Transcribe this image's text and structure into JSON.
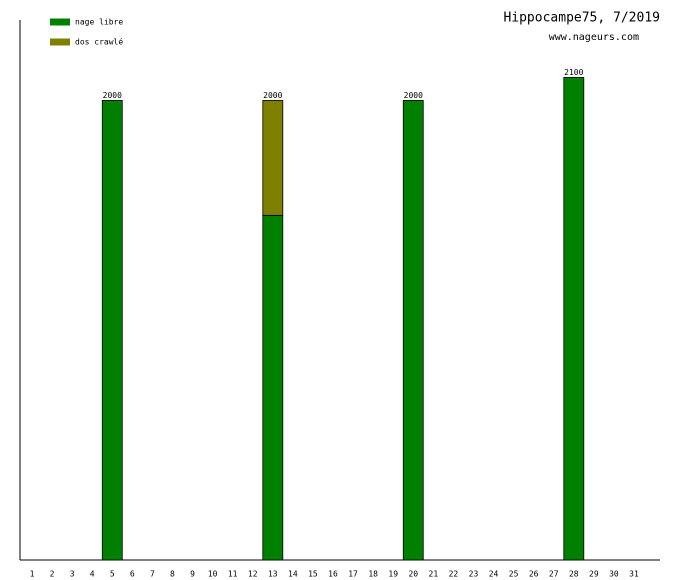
{
  "chart_data": {
    "type": "stacked_bar",
    "title": "Hippocampe75, 7/2019",
    "subtitle": "www.nageurs.com",
    "categories": [
      "1",
      "2",
      "3",
      "4",
      "5",
      "6",
      "7",
      "8",
      "9",
      "10",
      "11",
      "12",
      "13",
      "14",
      "15",
      "16",
      "17",
      "18",
      "19",
      "20",
      "21",
      "22",
      "23",
      "24",
      "25",
      "26",
      "27",
      "28",
      "29",
      "30",
      "31"
    ],
    "series": [
      {
        "name": "nage libre",
        "color": "#008000",
        "values": [
          null,
          null,
          null,
          null,
          2000,
          null,
          null,
          null,
          null,
          null,
          null,
          null,
          1500,
          null,
          null,
          null,
          null,
          null,
          null,
          2000,
          null,
          null,
          null,
          null,
          null,
          null,
          null,
          2100,
          null,
          null,
          null
        ]
      },
      {
        "name": "dos crawlé",
        "color": "#808000",
        "values": [
          null,
          null,
          null,
          null,
          null,
          null,
          null,
          null,
          null,
          null,
          null,
          null,
          500,
          null,
          null,
          null,
          null,
          null,
          null,
          null,
          null,
          null,
          null,
          null,
          null,
          null,
          null,
          null,
          null,
          null,
          null
        ]
      }
    ],
    "totals": [
      null,
      null,
      null,
      null,
      2000,
      null,
      null,
      null,
      null,
      null,
      null,
      null,
      2000,
      null,
      null,
      null,
      null,
      null,
      null,
      2000,
      null,
      null,
      null,
      null,
      null,
      null,
      null,
      2100,
      null,
      null,
      null
    ],
    "ylim": [
      0,
      2350
    ],
    "legend": "top-left"
  }
}
